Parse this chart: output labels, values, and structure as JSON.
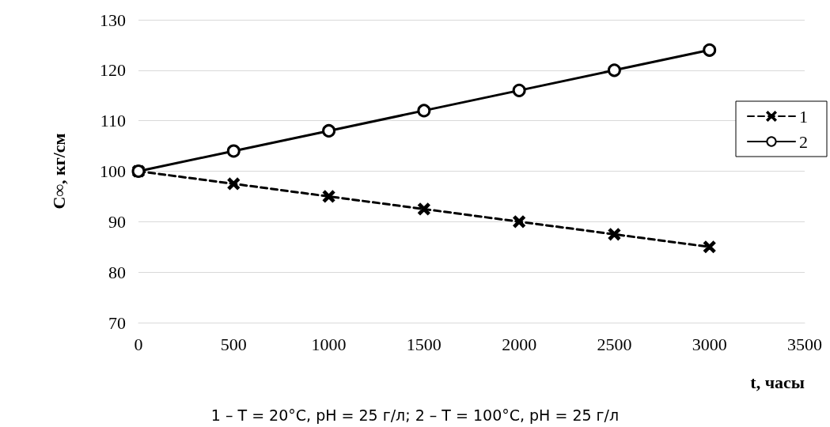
{
  "chart_data": {
    "type": "line",
    "xlabel": "t, часы",
    "ylabel": "C∞, кг/см",
    "x": [
      0,
      500,
      1000,
      1500,
      2000,
      2500,
      3000
    ],
    "series": [
      {
        "name": "1",
        "color": "#000000",
        "marker": "cross",
        "line_style": "dashed",
        "values": [
          100,
          97.5,
          95,
          92.5,
          90,
          87.5,
          85
        ]
      },
      {
        "name": "2",
        "color": "#000000",
        "marker": "circle",
        "line_style": "solid",
        "values": [
          100,
          104,
          108,
          112,
          116,
          120,
          124
        ]
      }
    ],
    "xlim": [
      0,
      3500
    ],
    "xticks": [
      0,
      500,
      1000,
      1500,
      2000,
      2500,
      3000,
      3500
    ],
    "ylim": [
      70,
      130
    ],
    "yticks": [
      70,
      80,
      90,
      100,
      110,
      120,
      130
    ],
    "grid": "y",
    "legend": "right",
    "annotations": [
      "1 – T = 20°C, pH = 25 г/л; 2 – T = 100°C, pH = 25 г/л"
    ]
  }
}
